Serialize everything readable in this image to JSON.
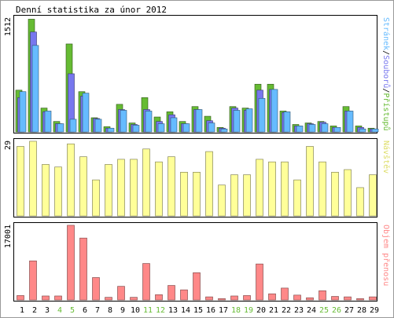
{
  "chart_data": {
    "type": "bar",
    "title": "Denní statistika za únor 2012",
    "categories": [
      "1",
      "2",
      "3",
      "4",
      "5",
      "6",
      "7",
      "8",
      "9",
      "10",
      "11",
      "12",
      "13",
      "14",
      "15",
      "16",
      "17",
      "18",
      "19",
      "20",
      "21",
      "22",
      "23",
      "24",
      "25",
      "26",
      "27",
      "28",
      "29"
    ],
    "weekend_days": [
      "4",
      "5",
      "11",
      "12",
      "18",
      "19",
      "25",
      "26"
    ],
    "panels": [
      {
        "name": "access",
        "ymax_label": "1512",
        "ymax": 1512,
        "series": [
          {
            "name": "Přístupů",
            "color": "#66bb33",
            "values": [
              560,
              1512,
              320,
              140,
              1180,
              540,
              190,
              70,
              370,
              120,
              460,
              200,
              270,
              140,
              340,
              210,
              60,
              340,
              320,
              640,
              640,
              280,
              100,
              120,
              140,
              80,
              340,
              80,
              50
            ]
          },
          {
            "name": "Souborů",
            "color": "#7777ee",
            "values": [
              460,
              1340,
              270,
              110,
              780,
              480,
              180,
              50,
              300,
              100,
              300,
              140,
              230,
              110,
              300,
              150,
              50,
              320,
              290,
              560,
              570,
              260,
              80,
              110,
              130,
              60,
              280,
              60,
              40
            ]
          },
          {
            "name": "Stránek",
            "color": "#66bbff",
            "values": [
              540,
              1160,
              280,
              110,
              170,
              520,
              170,
              50,
              290,
              90,
              280,
              110,
              190,
              110,
              300,
              120,
              40,
              290,
              310,
              450,
              570,
              270,
              80,
              100,
              110,
              60,
              280,
              40,
              40
            ]
          }
        ]
      },
      {
        "name": "visits",
        "ymax_label": "29",
        "ymax": 29,
        "series": [
          {
            "name": "Návštěv",
            "color": "#ffff99",
            "values": [
              27,
              29,
              20,
              19,
              28,
              23,
              14,
              20,
              22,
              22,
              26,
              21,
              23,
              17,
              17,
              25,
              12,
              16,
              16,
              22,
              21,
              21,
              14,
              27,
              21,
              17,
              18,
              11,
              16
            ]
          }
        ]
      },
      {
        "name": "kbytes",
        "ymax_label": "17001",
        "ymax": 17001,
        "series": [
          {
            "name": "Objem přenosu",
            "color": "#ff8888",
            "values": [
              1000,
              8900,
              900,
              900,
              17001,
              14100,
              5100,
              600,
              3100,
              600,
              8300,
              1200,
              3300,
              2300,
              6200,
              700,
              300,
              900,
              1000,
              8200,
              1400,
              2700,
              1100,
              500,
              2100,
              800,
              700,
              300,
              700
            ]
          }
        ]
      }
    ],
    "colors": {
      "weekend_label": "#66bb33",
      "weekday_label": "#000000",
      "frame": "#000000",
      "border": "#999999"
    }
  }
}
